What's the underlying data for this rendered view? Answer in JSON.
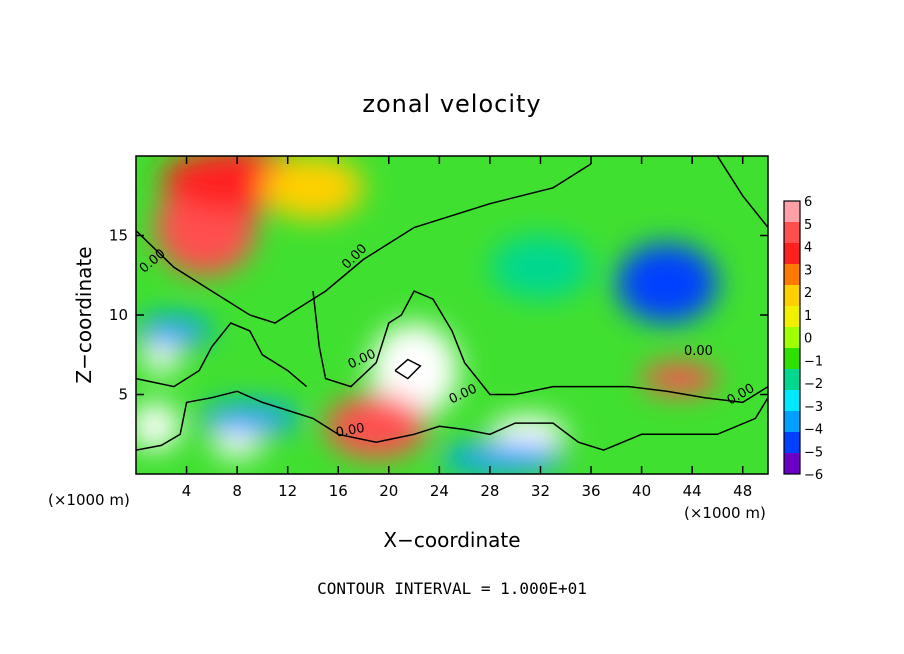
{
  "chart_data": {
    "type": "heatmap",
    "title": "zonal velocity",
    "xlabel": "X−coordinate",
    "ylabel": "Z−coordinate",
    "x_unit_note_left": "(×1000 m)",
    "x_unit_note_right": "(×1000 m)",
    "footer": "CONTOUR INTERVAL = 1.000E+01",
    "xlim": [
      0,
      50
    ],
    "ylim": [
      0,
      20
    ],
    "x_ticks": [
      4,
      8,
      12,
      16,
      20,
      24,
      28,
      32,
      36,
      40,
      44,
      48
    ],
    "y_ticks": [
      5,
      10,
      15
    ],
    "colorbar": {
      "range": [
        -6,
        6
      ],
      "ticks": [
        "6",
        "5",
        "4",
        "3",
        "2",
        "1",
        "0",
        "−1",
        "−2",
        "−3",
        "−4",
        "−5",
        "−6"
      ],
      "colors": [
        "#ff9fa8",
        "#ff5050",
        "#ff2020",
        "#ff7a00",
        "#ffd000",
        "#f0f000",
        "#a0ff00",
        "#30e000",
        "#00d890",
        "#00e8ff",
        "#00a0ff",
        "#0040ff",
        "#6a00c8"
      ]
    },
    "contour_labels": [
      "0.00",
      "0.00",
      "0.00",
      "0.00",
      "0.00",
      "0.00",
      "0.00"
    ],
    "blobs": [
      {
        "x": 5.5,
        "z": 15.5,
        "rx": 4,
        "rz": 3,
        "v": 5
      },
      {
        "x": 8,
        "z": 18.5,
        "rx": 6,
        "rz": 2,
        "v": 4
      },
      {
        "x": 14,
        "z": 18,
        "rx": 4,
        "rz": 2,
        "v": 2
      },
      {
        "x": 22,
        "z": 6.5,
        "rx": 3.5,
        "rz": 3,
        "v": 6
      },
      {
        "x": 19,
        "z": 3,
        "rx": 4,
        "rz": 2,
        "v": 5
      },
      {
        "x": 31,
        "z": 2.5,
        "rx": 3,
        "rz": 1.2,
        "v": 6
      },
      {
        "x": 43,
        "z": 6,
        "rx": 3,
        "rz": 1,
        "v": 5
      },
      {
        "x": 2,
        "z": 7.5,
        "rx": 1.5,
        "rz": 1.2,
        "v": 6
      },
      {
        "x": 1.5,
        "z": 3,
        "rx": 2,
        "rz": 1.5,
        "v": 6
      },
      {
        "x": 8,
        "z": 2,
        "rx": 2,
        "rz": 1,
        "v": 6
      },
      {
        "x": 42,
        "z": 12,
        "rx": 4,
        "rz": 2.5,
        "v": -5
      },
      {
        "x": 32,
        "z": 13,
        "rx": 4,
        "rz": 2,
        "v": -2
      },
      {
        "x": 3,
        "z": 9,
        "rx": 3,
        "rz": 1,
        "v": -4
      },
      {
        "x": 9,
        "z": 3.5,
        "rx": 4,
        "rz": 1,
        "v": -4
      },
      {
        "x": 29,
        "z": 1,
        "rx": 5,
        "rz": 1,
        "v": -4
      }
    ]
  }
}
